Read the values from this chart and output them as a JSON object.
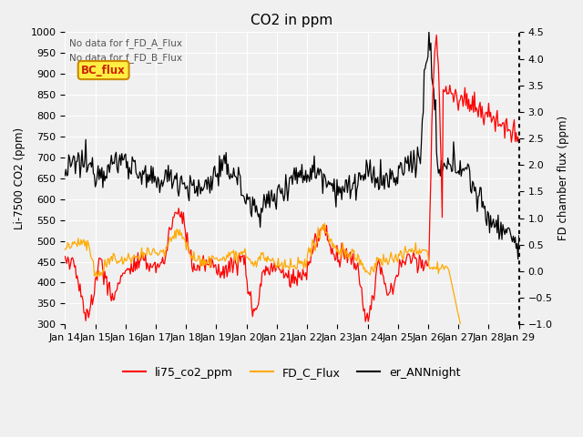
{
  "title": "CO2 in ppm",
  "ylabel_left": "Li-7500 CO2 (ppm)",
  "ylabel_right": "FD chamber flux (ppm)",
  "ylim_left": [
    300,
    1000
  ],
  "ylim_right": [
    -1.0,
    4.5
  ],
  "yticks_left": [
    300,
    350,
    400,
    450,
    500,
    550,
    600,
    650,
    700,
    750,
    800,
    850,
    900,
    950,
    1000
  ],
  "yticks_right": [
    -1.0,
    -0.5,
    0.0,
    0.5,
    1.0,
    1.5,
    2.0,
    2.5,
    3.0,
    3.5,
    4.0,
    4.5
  ],
  "annotation1": "No data for f_FD_A_Flux",
  "annotation2": "No data for f_FD_B_Flux",
  "bc_flux_label": "BC_flux",
  "legend_labels": [
    "li75_co2_ppm",
    "FD_C_Flux",
    "er_ANNnight"
  ],
  "line_colors": {
    "li75": "#ff0000",
    "fd_c": "#ffaa00",
    "er_ann": "#000000"
  },
  "background_color": "#f0f0f0",
  "n_points": 480
}
